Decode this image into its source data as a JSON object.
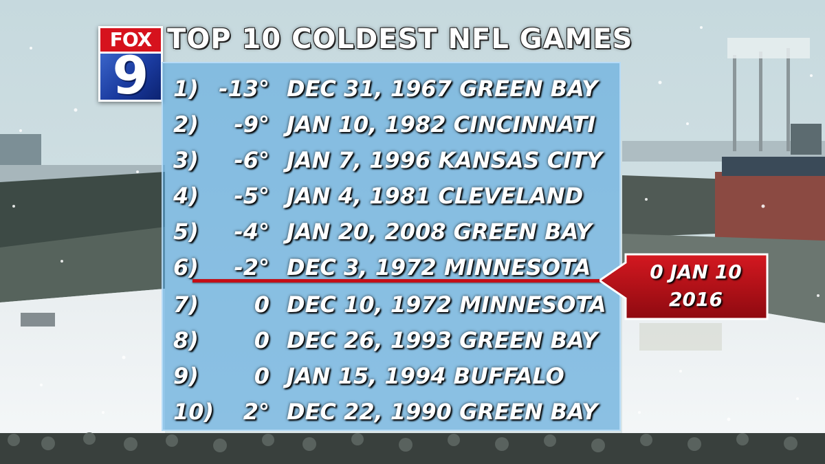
{
  "branding": {
    "logo_top": "FOX",
    "logo_number": "9"
  },
  "title": "TOP 10 COLDEST NFL GAMES",
  "games": [
    {
      "rank": "1)",
      "temp": "-13°",
      "game": "DEC 31, 1967 GREEN BAY"
    },
    {
      "rank": "2)",
      "temp": "-9°",
      "game": "JAN 10, 1982 CINCINNATI"
    },
    {
      "rank": "3)",
      "temp": "-6°",
      "game": "JAN 7, 1996 KANSAS CITY"
    },
    {
      "rank": "4)",
      "temp": "-5°",
      "game": "JAN 4, 1981 CLEVELAND"
    },
    {
      "rank": "5)",
      "temp": "-4°",
      "game": "JAN 20, 2008 GREEN BAY"
    },
    {
      "rank": "6)",
      "temp": "-2°",
      "game": "DEC 3, 1972 MINNESOTA"
    },
    {
      "rank": "7)",
      "temp": "0",
      "game": "DEC 10, 1972 MINNESOTA"
    },
    {
      "rank": "8)",
      "temp": "0",
      "game": "DEC 26, 1993 GREEN BAY"
    },
    {
      "rank": "9)",
      "temp": "0",
      "game": "JAN 15, 1994 BUFFALO"
    },
    {
      "rank": "10)",
      "temp": "2°",
      "game": "DEC 22, 1990 GREEN BAY"
    }
  ],
  "callout": {
    "line1": "0  JAN 10",
    "line2": "2016"
  },
  "colors": {
    "accent_red": "#c40e16",
    "panel_blue": "#5aaae1",
    "logo_red": "#d6121d",
    "logo_blue": "#1a3a9e"
  }
}
